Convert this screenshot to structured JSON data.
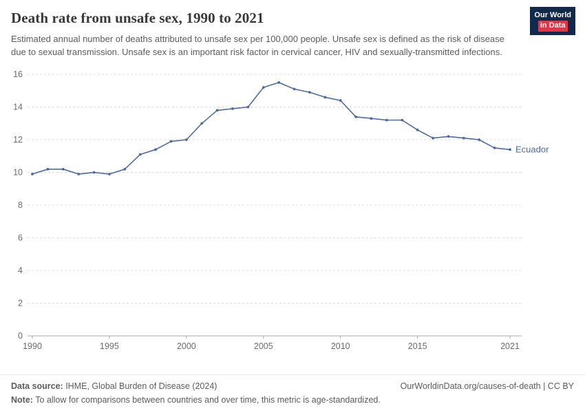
{
  "header": {
    "title": "Death rate from unsafe sex, 1990 to 2021",
    "subtitle": "Estimated annual number of deaths attributed to unsafe sex per 100,000 people. Unsafe sex is defined as the risk of disease due to sexual transmission. Unsafe sex is an important risk factor in cervical cancer, HIV and sexually-transmitted infections.",
    "logo": {
      "line1": "Our World",
      "line2": "in Data",
      "bg_color": "#12294E",
      "accent_color": "#E0364A"
    }
  },
  "chart_data": {
    "type": "line",
    "title": "Death rate from unsafe sex, 1990 to 2021",
    "xlabel": "",
    "ylabel": "",
    "xlim": [
      1990,
      2021
    ],
    "ylim": [
      0,
      16
    ],
    "xticks": [
      1990,
      1995,
      2000,
      2005,
      2010,
      2015,
      2021
    ],
    "yticks": [
      0,
      2,
      4,
      6,
      8,
      10,
      12,
      14,
      16
    ],
    "grid": "horizontal-dashed",
    "legend_position": "end-of-line",
    "axis_color": "#a9a9a9",
    "gridline_color": "#dcdcdc",
    "tick_label_color": "#6b6b6b",
    "series": [
      {
        "name": "Ecuador",
        "color": "#4C6A9C",
        "x": [
          1990,
          1991,
          1992,
          1993,
          1994,
          1995,
          1996,
          1997,
          1998,
          1999,
          2000,
          2001,
          2002,
          2003,
          2004,
          2005,
          2006,
          2007,
          2008,
          2009,
          2010,
          2011,
          2012,
          2013,
          2014,
          2015,
          2016,
          2017,
          2018,
          2019,
          2020,
          2021
        ],
        "values": [
          9.9,
          10.2,
          10.2,
          9.9,
          10.0,
          9.9,
          10.2,
          11.1,
          11.4,
          11.9,
          12.0,
          13.0,
          13.8,
          13.9,
          14.0,
          15.2,
          15.5,
          15.1,
          14.9,
          14.6,
          14.4,
          13.4,
          13.3,
          13.2,
          13.2,
          12.6,
          12.1,
          12.2,
          12.1,
          12.0,
          11.5,
          11.4
        ]
      }
    ]
  },
  "footer": {
    "source_label": "Data source:",
    "source_text": " IHME, Global Burden of Disease (2024)",
    "right_text": "OurWorldinData.org/causes-of-death | CC BY",
    "note_label": "Note:",
    "note_text": " To allow for comparisons between countries and over time, this metric is age-standardized."
  }
}
